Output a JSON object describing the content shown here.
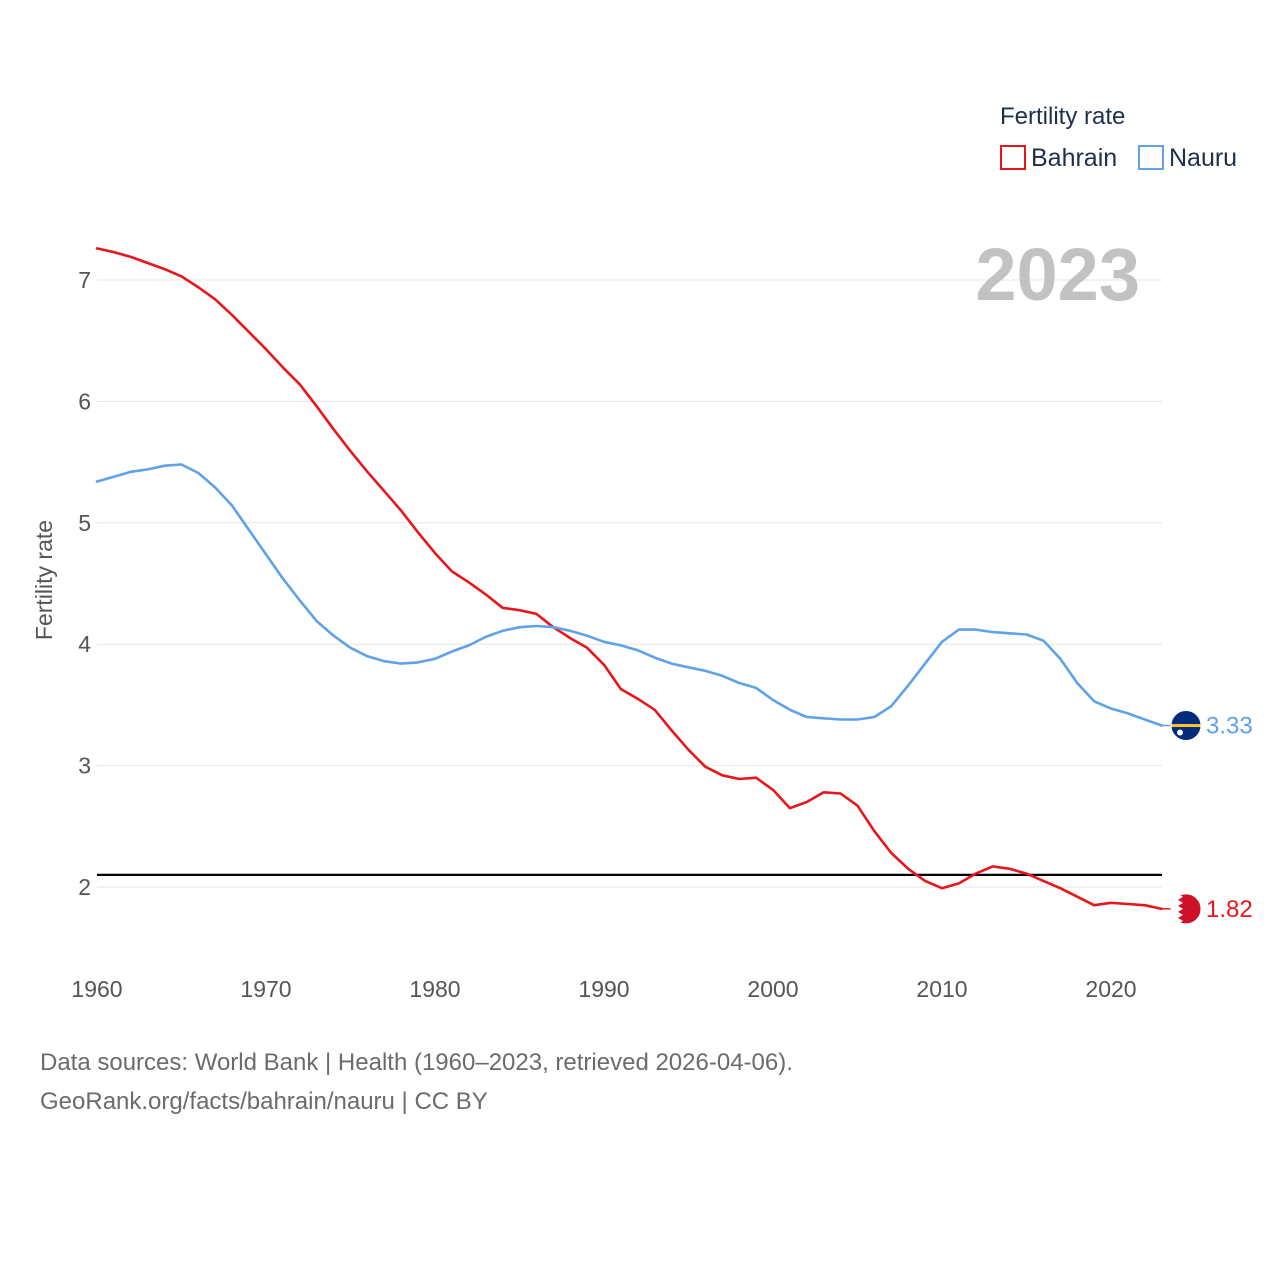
{
  "chart_data": {
    "type": "line",
    "title": "",
    "year_label": "2023",
    "xlabel": "",
    "ylabel": "Fertility rate",
    "xlim": [
      1960,
      2023
    ],
    "ylim": [
      1.4,
      7.3
    ],
    "x_ticks": [
      1960,
      1970,
      1980,
      1990,
      2000,
      2010,
      2020
    ],
    "y_ticks": [
      2,
      3,
      4,
      5,
      6,
      7
    ],
    "grid": true,
    "legend": {
      "title": "Fertility rate",
      "position": "top-right"
    },
    "reference_line": {
      "value": 2.1,
      "color": "#000000"
    },
    "x": [
      1960,
      1961,
      1962,
      1963,
      1964,
      1965,
      1966,
      1967,
      1968,
      1969,
      1970,
      1971,
      1972,
      1973,
      1974,
      1975,
      1976,
      1977,
      1978,
      1979,
      1980,
      1981,
      1982,
      1983,
      1984,
      1985,
      1986,
      1987,
      1988,
      1989,
      1990,
      1991,
      1992,
      1993,
      1994,
      1995,
      1996,
      1997,
      1998,
      1999,
      2000,
      2001,
      2002,
      2003,
      2004,
      2005,
      2006,
      2007,
      2008,
      2009,
      2010,
      2011,
      2012,
      2013,
      2014,
      2015,
      2016,
      2017,
      2018,
      2019,
      2020,
      2021,
      2022,
      2023
    ],
    "series": [
      {
        "name": "Bahrain",
        "color": "#e8161c",
        "end_label": "1.82",
        "flag": "bahrain-flag",
        "values": [
          7.26,
          7.23,
          7.19,
          7.14,
          7.09,
          7.03,
          6.94,
          6.84,
          6.71,
          6.57,
          6.43,
          6.28,
          6.14,
          5.96,
          5.77,
          5.59,
          5.42,
          5.26,
          5.1,
          4.92,
          4.75,
          4.6,
          4.51,
          4.41,
          4.3,
          4.28,
          4.25,
          4.14,
          4.05,
          3.97,
          3.83,
          3.63,
          3.55,
          3.46,
          3.29,
          3.13,
          2.99,
          2.92,
          2.89,
          2.9,
          2.8,
          2.65,
          2.7,
          2.78,
          2.77,
          2.67,
          2.46,
          2.28,
          2.15,
          2.05,
          1.99,
          2.03,
          2.11,
          2.17,
          2.15,
          2.11,
          2.05,
          1.99,
          1.92,
          1.85,
          1.87,
          1.86,
          1.85,
          1.82
        ]
      },
      {
        "name": "Nauru",
        "color": "#5fa2e6",
        "end_label": "3.33",
        "flag": "nauru-flag",
        "values": [
          5.34,
          5.38,
          5.42,
          5.44,
          5.47,
          5.48,
          5.41,
          5.29,
          5.14,
          4.94,
          4.74,
          4.54,
          4.36,
          4.19,
          4.07,
          3.97,
          3.9,
          3.86,
          3.84,
          3.85,
          3.88,
          3.94,
          3.99,
          4.06,
          4.11,
          4.14,
          4.15,
          4.14,
          4.11,
          4.07,
          4.02,
          3.99,
          3.95,
          3.89,
          3.84,
          3.81,
          3.78,
          3.74,
          3.68,
          3.64,
          3.54,
          3.46,
          3.4,
          3.39,
          3.38,
          3.38,
          3.4,
          3.49,
          3.66,
          3.84,
          4.02,
          4.12,
          4.12,
          4.1,
          4.09,
          4.08,
          4.03,
          3.88,
          3.68,
          3.53,
          3.47,
          3.43,
          3.38,
          3.33
        ]
      }
    ]
  },
  "source": {
    "line1": "Data sources: World Bank | Health (1960–2023, retrieved 2026-04-06).",
    "line2": "GeoRank.org/facts/bahrain/nauru | CC BY"
  }
}
